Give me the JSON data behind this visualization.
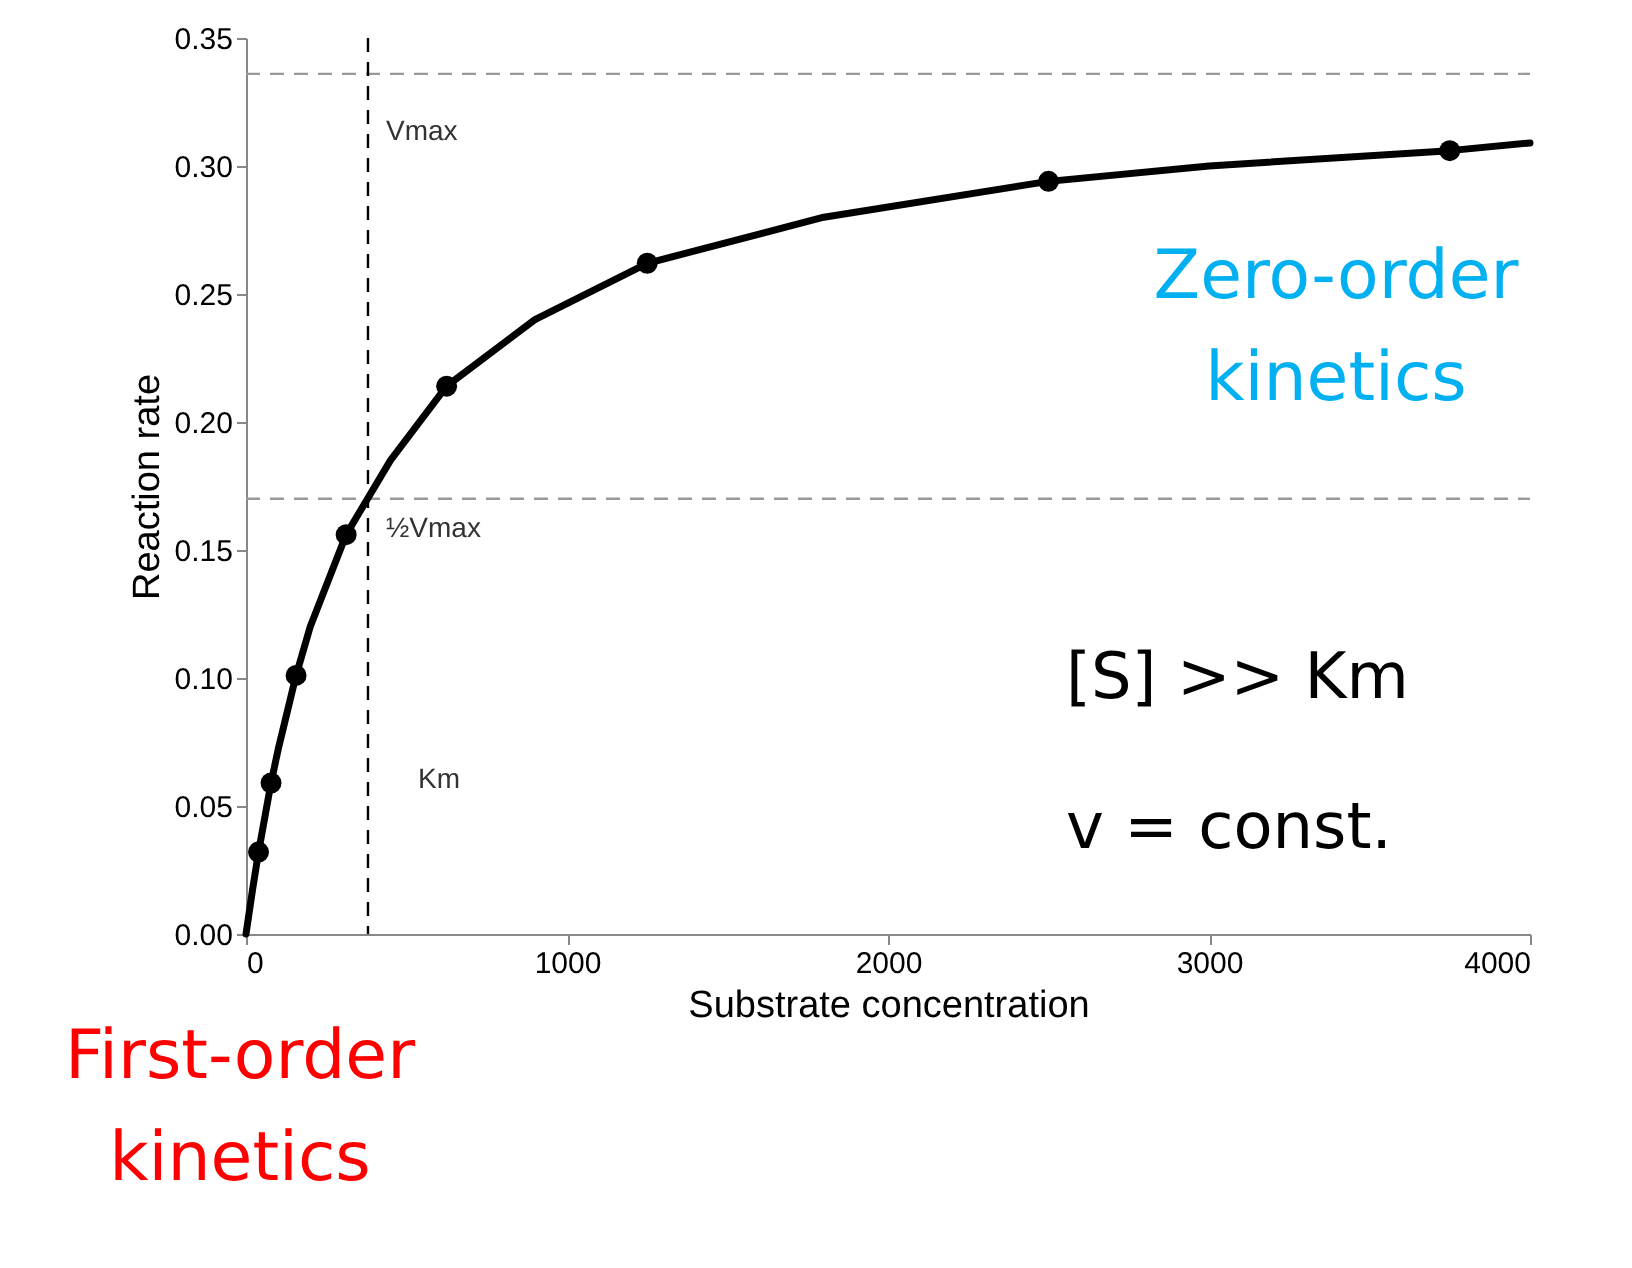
{
  "chart_data": {
    "type": "line",
    "xlabel": "Substrate concentration",
    "ylabel": "Reaction rate",
    "xlim": [
      0,
      4000
    ],
    "xticks": [
      0,
      1000,
      2000,
      3000,
      4000
    ],
    "ylim": [
      0,
      0.35
    ],
    "yticks": [
      {
        "value": 0,
        "label": "0.00"
      },
      0.05,
      {
        "value": 0.1,
        "label": "0.10"
      },
      0.15,
      {
        "value": 0.2,
        "label": "0.20"
      },
      0.25,
      {
        "value": 0.3,
        "label": "0.30"
      },
      0.35
    ],
    "grid": false,
    "series": [
      {
        "color": "#000000",
        "line_style": "solid",
        "x": [
          0,
          20,
          39,
          78,
          100,
          156,
          200,
          312,
          450,
          625,
          900,
          1250,
          1800,
          2500,
          3000,
          3750,
          4000
        ],
        "values": [
          0,
          0.017,
          0.032,
          0.059,
          0.072,
          0.101,
          0.12,
          0.156,
          0.185,
          0.214,
          0.24,
          0.262,
          0.28,
          0.294,
          0.3,
          0.306,
          0.309
        ]
      },
      {
        "type": "scatter",
        "color": "#000000",
        "marker": "circle",
        "x": [
          39,
          78,
          156,
          312,
          625,
          1250,
          2500,
          3750
        ],
        "values": [
          0.032,
          0.059,
          0.101,
          0.156,
          0.214,
          0.262,
          0.294,
          0.306
        ]
      }
    ],
    "ref_lines": [
      {
        "axis": "y",
        "value": 0.336,
        "label": "Vmax",
        "color": "#999999",
        "line_style": "dashed"
      },
      {
        "axis": "y",
        "value": 0.17,
        "label": "½Vmax",
        "color": "#999999",
        "line_style": "dashed"
      },
      {
        "axis": "x",
        "value": 380,
        "label": "Km",
        "color": "#000000",
        "line_style": "dashed"
      }
    ],
    "annotations": [
      "Zero-order kinetics",
      "[S] >> Km",
      "v = const.",
      "First-order kinetics"
    ]
  }
}
